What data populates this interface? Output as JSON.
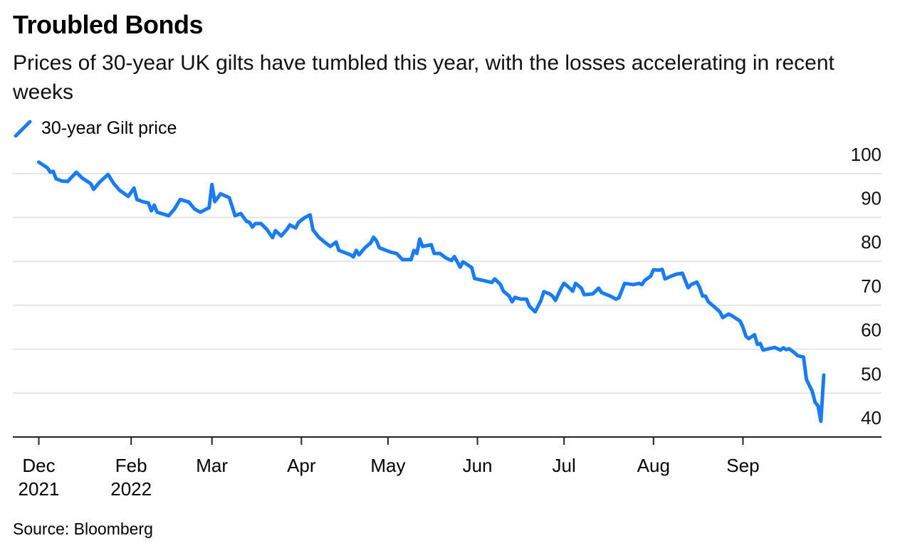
{
  "chart_data": {
    "type": "line",
    "title": "Troubled Bonds",
    "subtitle": "Prices of 30-year UK gilts have tumbled this year, with the losses accelerating in recent weeks",
    "source": "Source: Bloomberg",
    "series": [
      {
        "name": "30-year Gilt price",
        "color": "#1a7cf5",
        "x": [
          0,
          3,
          4,
          5,
          6,
          8,
          10,
          13,
          15,
          18,
          19,
          21,
          24,
          26,
          28,
          31,
          33,
          34,
          36,
          38,
          39,
          40,
          41,
          45,
          47,
          49,
          52,
          54,
          56,
          58,
          59,
          60,
          61,
          63,
          66,
          67,
          68,
          70,
          72,
          73,
          74,
          75,
          77,
          79,
          81,
          82,
          84,
          86,
          87,
          89,
          90,
          92,
          94,
          95,
          97,
          99,
          101,
          103,
          104,
          108,
          109,
          110,
          111,
          113,
          115,
          116,
          117,
          118,
          122,
          124,
          126,
          129,
          130,
          131,
          132,
          133,
          136,
          137,
          139,
          141,
          143,
          144,
          146,
          147,
          150,
          151,
          157,
          158,
          160,
          161,
          163,
          164,
          165,
          167,
          169,
          170,
          172,
          174,
          175,
          177,
          178,
          179,
          181,
          182,
          184,
          185,
          186,
          188,
          189,
          192,
          194,
          195,
          198,
          200,
          201,
          203,
          206,
          208,
          209,
          210,
          212,
          213,
          215,
          216,
          217,
          219,
          221,
          223,
          225,
          226,
          228,
          229,
          230,
          231,
          232,
          234,
          236,
          237,
          239,
          240,
          243,
          244,
          245,
          246,
          248,
          249,
          250,
          251,
          253,
          255,
          257,
          258,
          259,
          260,
          262,
          263,
          265,
          266,
          268,
          269,
          270,
          271,
          272
        ],
        "values": [
          102.6,
          101.3,
          100.3,
          100.5,
          98.8,
          98.3,
          98.2,
          100.3,
          99.0,
          97.7,
          96.4,
          98.0,
          99.8,
          97.7,
          96.2,
          94.8,
          96.7,
          94.1,
          93.6,
          93.3,
          91.5,
          92.8,
          91.2,
          90.4,
          91.9,
          94.1,
          93.5,
          91.9,
          91.2,
          91.9,
          92.2,
          97.5,
          93.6,
          95.4,
          94.5,
          92.5,
          90.4,
          90.9,
          89.1,
          88.9,
          87.8,
          88.6,
          88.6,
          87.3,
          85.4,
          87.0,
          85.8,
          87.3,
          88.3,
          87.6,
          88.9,
          89.9,
          90.6,
          87.2,
          85.5,
          84.4,
          83.4,
          84.4,
          82.5,
          81.5,
          81.0,
          82.5,
          81.5,
          83.1,
          84.2,
          85.5,
          84.7,
          83.1,
          82.1,
          81.8,
          80.4,
          80.4,
          82.5,
          81.8,
          85.1,
          83.4,
          83.8,
          81.8,
          81.8,
          80.8,
          80.2,
          81.1,
          78.7,
          79.9,
          78.6,
          76.1,
          75.2,
          76.0,
          74.7,
          73.2,
          72.1,
          70.8,
          71.8,
          71.4,
          71.4,
          69.8,
          68.5,
          71.1,
          73.1,
          72.6,
          72.1,
          71.1,
          73.9,
          75.0,
          73.9,
          73.2,
          75.0,
          73.9,
          72.4,
          72.6,
          73.9,
          72.9,
          72.1,
          71.4,
          71.7,
          75.0,
          74.7,
          75.0,
          74.7,
          75.7,
          76.6,
          78.1,
          78.0,
          78.2,
          76.0,
          76.6,
          77.1,
          77.3,
          74.0,
          74.7,
          75.3,
          74.0,
          72.1,
          72.1,
          70.8,
          69.7,
          68.5,
          67.2,
          68.0,
          67.7,
          66.4,
          65.0,
          63.0,
          62.4,
          63.3,
          61.1,
          61.3,
          59.8,
          60.1,
          60.4,
          59.8,
          60.3,
          59.9,
          60.1,
          59.1,
          58.5,
          58.2,
          53.1,
          50.4,
          47.9,
          47.1,
          43.6,
          54.1
        ]
      }
    ],
    "xlim": [
      -9,
      292
    ],
    "xticks": [
      {
        "value": 0,
        "label": "Dec 2021"
      },
      {
        "value": 32,
        "label": "Feb 2022"
      },
      {
        "value": 60,
        "label": "Mar"
      },
      {
        "value": 91,
        "label": "Apr"
      },
      {
        "value": 121,
        "label": "May"
      },
      {
        "value": 152,
        "label": "Jun"
      },
      {
        "value": 182,
        "label": "Jul"
      },
      {
        "value": 213,
        "label": "Aug"
      },
      {
        "value": 244,
        "label": "Sep"
      }
    ],
    "ylim": [
      40,
      105
    ],
    "yticks": [
      40,
      50,
      60,
      70,
      80,
      90,
      100
    ],
    "grid": true
  }
}
